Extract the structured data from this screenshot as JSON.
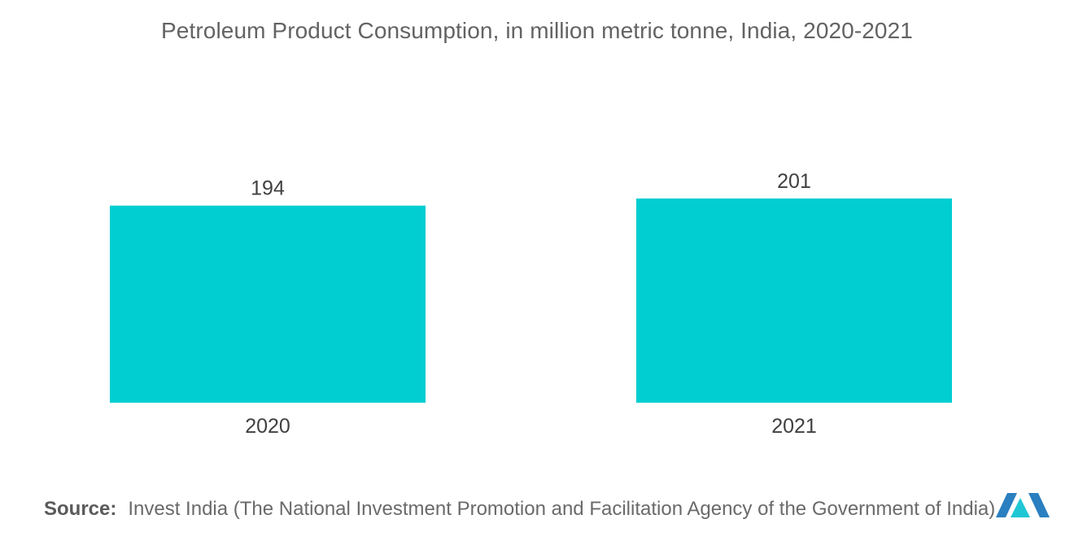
{
  "chart_data": {
    "type": "bar",
    "title": "Petroleum Product Consumption, in million metric tonne, India, 2020-2021",
    "categories": [
      "2020",
      "2021"
    ],
    "values": [
      194,
      201
    ],
    "xlabel": "",
    "ylabel": "",
    "ylim": [
      0,
      201
    ],
    "grid": false,
    "legend": "none",
    "bar_color": "#00CED1",
    "data_labels": true
  },
  "source": {
    "label": "Source:",
    "text": "Invest India (The National Investment Promotion and Facilitation Agency of the Government of India)"
  },
  "logo": {
    "icon": "mordor-intelligence-logo-icon",
    "colors": [
      "#2A7FC0",
      "#1FC7D4"
    ]
  }
}
